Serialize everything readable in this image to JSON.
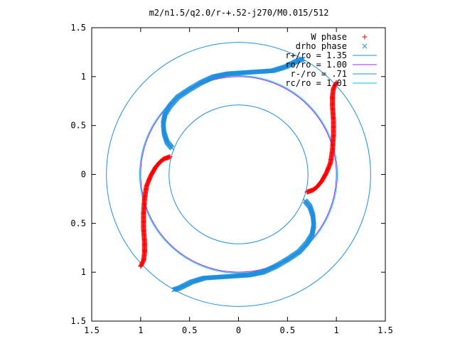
{
  "chart_data": {
    "type": "scatter",
    "title": "m2/n1.5/q2.0/r-+.52-j270/M0.015/512",
    "xlim": [
      -1.5,
      1.5
    ],
    "ylim": [
      -1.5,
      1.5
    ],
    "x_tick_values": [
      -1.5,
      -1,
      -0.5,
      0,
      0.5,
      1,
      1.5
    ],
    "x_tick_labels": [
      "1.5",
      "1",
      "0.5",
      "0",
      "0.5",
      "1",
      "1.5"
    ],
    "y_tick_values": [
      1.5,
      1,
      0.5,
      0,
      -0.5,
      -1,
      -1.5
    ],
    "y_tick_labels": [
      "1.5",
      "1",
      "0.5",
      "0",
      "0.5",
      "1",
      "1.5"
    ],
    "grid": false,
    "legend_position": "top-right",
    "series": [
      {
        "name": "W phase",
        "marker": "plus",
        "color": "#ff0000",
        "arms": [
          [
            [
              -0.7,
              0.18
            ],
            [
              -0.73,
              0.17
            ],
            [
              -0.76,
              0.16
            ],
            [
              -0.8,
              0.13
            ],
            [
              -0.85,
              0.07
            ],
            [
              -0.9,
              -0.02
            ],
            [
              -0.94,
              -0.12
            ],
            [
              -0.96,
              -0.25
            ],
            [
              -0.97,
              -0.4
            ],
            [
              -0.97,
              -0.55
            ],
            [
              -0.96,
              -0.7
            ],
            [
              -0.96,
              -0.8
            ],
            [
              -0.97,
              -0.88
            ],
            [
              -1.0,
              -0.94
            ]
          ],
          [
            [
              0.7,
              -0.18
            ],
            [
              0.73,
              -0.17
            ],
            [
              0.76,
              -0.16
            ],
            [
              0.8,
              -0.13
            ],
            [
              0.85,
              -0.07
            ],
            [
              0.9,
              0.02
            ],
            [
              0.94,
              0.12
            ],
            [
              0.96,
              0.25
            ],
            [
              0.97,
              0.4
            ],
            [
              0.97,
              0.55
            ],
            [
              0.96,
              0.7
            ],
            [
              0.96,
              0.8
            ],
            [
              0.97,
              0.88
            ],
            [
              1.0,
              0.94
            ]
          ]
        ]
      },
      {
        "name": "drho phase",
        "marker": "cross",
        "color": "#1f8fdf",
        "arms": [
          [
            [
              -0.68,
              0.27
            ],
            [
              -0.73,
              0.33
            ],
            [
              -0.76,
              0.42
            ],
            [
              -0.77,
              0.52
            ],
            [
              -0.75,
              0.62
            ],
            [
              -0.7,
              0.7
            ],
            [
              -0.62,
              0.79
            ],
            [
              -0.5,
              0.87
            ],
            [
              -0.38,
              0.94
            ],
            [
              -0.25,
              1.0
            ],
            [
              -0.1,
              1.03
            ],
            [
              0.05,
              1.04
            ],
            [
              0.2,
              1.05
            ],
            [
              0.35,
              1.06
            ],
            [
              0.48,
              1.1
            ],
            [
              0.6,
              1.16
            ],
            [
              0.66,
              1.18
            ]
          ],
          [
            [
              0.68,
              -0.27
            ],
            [
              0.73,
              -0.33
            ],
            [
              0.76,
              -0.42
            ],
            [
              0.77,
              -0.52
            ],
            [
              0.75,
              -0.62
            ],
            [
              0.7,
              -0.7
            ],
            [
              0.62,
              -0.79
            ],
            [
              0.5,
              -0.87
            ],
            [
              0.38,
              -0.94
            ],
            [
              0.25,
              -1.0
            ],
            [
              0.1,
              -1.03
            ],
            [
              -0.05,
              -1.04
            ],
            [
              -0.2,
              -1.05
            ],
            [
              -0.35,
              -1.06
            ],
            [
              -0.48,
              -1.1
            ],
            [
              -0.6,
              -1.16
            ],
            [
              -0.66,
              -1.18
            ]
          ]
        ]
      },
      {
        "name": "r+/ro = 1.35",
        "type": "circle",
        "radius": 1.35,
        "color": "#1f8fdf"
      },
      {
        "name": "ro/ro = 1.00",
        "type": "circle",
        "radius": 1.0,
        "color": "#a020f0"
      },
      {
        "name": "r-/ro = .71",
        "type": "circle",
        "radius": 0.71,
        "color": "#1f8fdf"
      },
      {
        "name": "rc/ro = 1.01",
        "type": "circle",
        "radius": 1.01,
        "color": "#00c8d8"
      }
    ]
  }
}
